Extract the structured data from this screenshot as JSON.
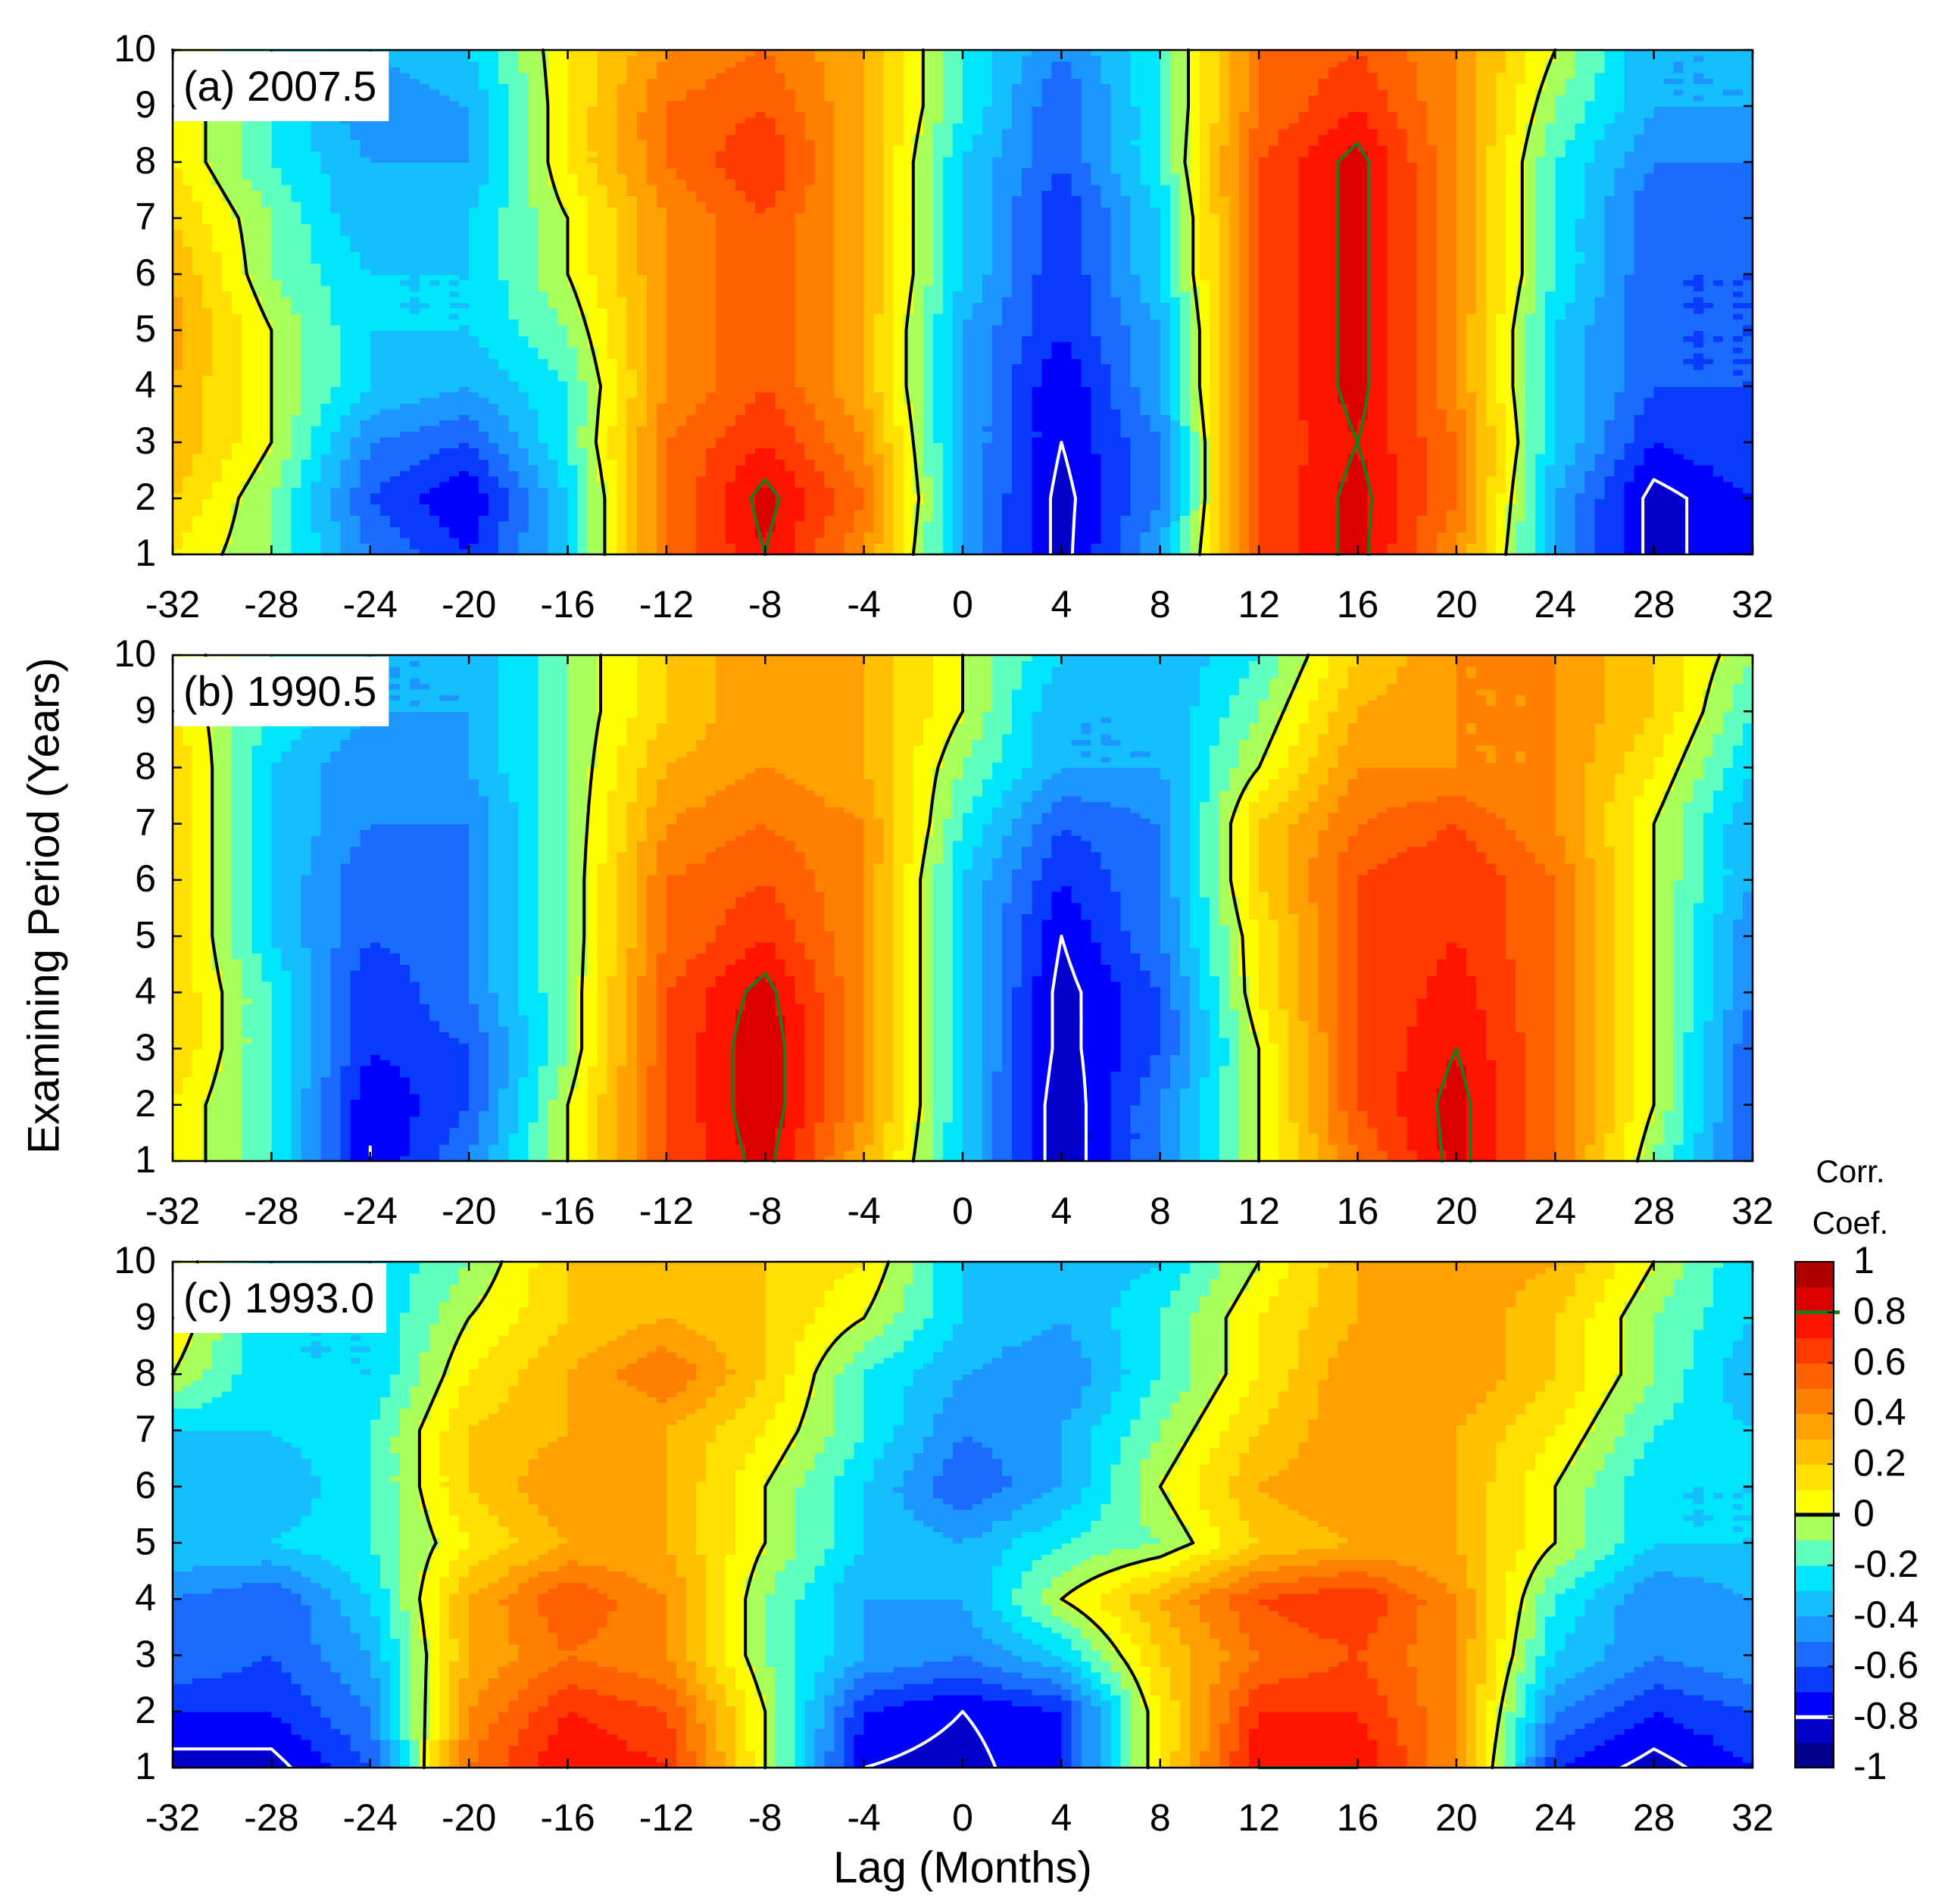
{
  "chart_data": [
    {
      "type": "contour",
      "title": "(a) 2007.5",
      "x": [
        -32,
        -28,
        -24,
        -20,
        -16,
        -12,
        -8,
        -4,
        0,
        4,
        8,
        12,
        16,
        20,
        24,
        28,
        32
      ],
      "y": [
        1,
        2,
        3,
        4,
        5,
        6,
        7,
        8,
        9,
        10
      ],
      "z": [
        [
          0.1,
          -0.1,
          -0.5,
          -0.7,
          -0.3,
          0.5,
          0.8,
          0.4,
          -0.4,
          -0.85,
          -0.4,
          0.6,
          0.85,
          0.4,
          -0.4,
          -0.85,
          -0.7
        ],
        [
          0.2,
          -0.1,
          -0.6,
          -0.8,
          -0.3,
          0.5,
          0.85,
          0.5,
          -0.4,
          -0.85,
          -0.5,
          0.6,
          0.85,
          0.5,
          -0.4,
          -0.85,
          -0.7
        ],
        [
          0.3,
          0.0,
          -0.5,
          -0.6,
          -0.2,
          0.5,
          0.7,
          0.4,
          -0.4,
          -0.8,
          -0.5,
          0.6,
          0.8,
          0.5,
          -0.3,
          -0.7,
          -0.6
        ],
        [
          0.3,
          0.0,
          -0.3,
          -0.4,
          -0.2,
          0.4,
          0.6,
          0.3,
          -0.4,
          -0.8,
          -0.4,
          0.6,
          0.85,
          0.4,
          -0.3,
          -0.6,
          -0.6
        ],
        [
          0.35,
          0.0,
          -0.3,
          -0.3,
          -0.1,
          0.4,
          0.6,
          0.3,
          -0.4,
          -0.7,
          -0.4,
          0.6,
          0.85,
          0.4,
          -0.3,
          -0.6,
          -0.6
        ],
        [
          0.3,
          -0.1,
          -0.3,
          -0.3,
          0.0,
          0.4,
          0.6,
          0.3,
          -0.3,
          -0.7,
          -0.3,
          0.6,
          0.85,
          0.4,
          -0.2,
          -0.6,
          -0.6
        ],
        [
          0.2,
          -0.1,
          -0.4,
          -0.3,
          0.0,
          0.4,
          0.6,
          0.3,
          -0.3,
          -0.7,
          -0.3,
          0.6,
          0.85,
          0.4,
          -0.2,
          -0.6,
          -0.5
        ],
        [
          0.1,
          -0.2,
          -0.4,
          -0.4,
          0.1,
          0.5,
          0.7,
          0.3,
          -0.3,
          -0.6,
          -0.2,
          0.6,
          0.85,
          0.4,
          -0.2,
          -0.5,
          -0.5
        ],
        [
          0.1,
          -0.2,
          -0.5,
          -0.4,
          0.1,
          0.5,
          0.6,
          0.3,
          -0.2,
          -0.6,
          -0.2,
          0.5,
          0.7,
          0.4,
          -0.1,
          -0.4,
          -0.4
        ],
        [
          0.0,
          -0.2,
          -0.4,
          -0.3,
          0.1,
          0.4,
          0.5,
          0.3,
          -0.2,
          -0.5,
          -0.2,
          0.5,
          0.6,
          0.4,
          0.0,
          -0.4,
          -0.4
        ]
      ],
      "xlim": [
        -32,
        32
      ],
      "ylim": [
        1,
        10
      ],
      "xticks": [
        -32,
        -28,
        -24,
        -20,
        -16,
        -12,
        -8,
        -4,
        0,
        4,
        8,
        12,
        16,
        20,
        24,
        28,
        32
      ],
      "yticks": [
        1,
        2,
        3,
        4,
        5,
        6,
        7,
        8,
        9,
        10
      ]
    },
    {
      "type": "contour",
      "title": "(b) 1990.5",
      "ylabel": "Examining Period (Years)",
      "x": [
        -32,
        -28,
        -24,
        -20,
        -16,
        -12,
        -8,
        -4,
        0,
        4,
        8,
        12,
        16,
        20,
        24,
        28,
        32
      ],
      "y": [
        1,
        2,
        3,
        4,
        5,
        6,
        7,
        8,
        9,
        10
      ],
      "z": [
        [
          0.1,
          -0.2,
          -0.8,
          -0.5,
          0.0,
          0.6,
          0.85,
          0.3,
          -0.3,
          -0.9,
          -0.5,
          0.0,
          0.5,
          0.85,
          0.5,
          -0.1,
          -0.6
        ],
        [
          0.1,
          -0.2,
          -0.8,
          -0.6,
          0.0,
          0.6,
          0.9,
          0.4,
          -0.3,
          -0.9,
          -0.5,
          0.0,
          0.6,
          0.85,
          0.5,
          0.0,
          -0.6
        ],
        [
          0.2,
          -0.2,
          -0.7,
          -0.6,
          -0.1,
          0.6,
          0.9,
          0.4,
          -0.3,
          -0.85,
          -0.6,
          0.0,
          0.6,
          0.8,
          0.5,
          0.0,
          -0.6
        ],
        [
          0.2,
          -0.2,
          -0.7,
          -0.5,
          -0.1,
          0.6,
          0.85,
          0.4,
          -0.3,
          -0.85,
          -0.6,
          0.1,
          0.6,
          0.75,
          0.5,
          0.0,
          -0.5
        ],
        [
          0.2,
          -0.3,
          -0.6,
          -0.5,
          -0.1,
          0.5,
          0.7,
          0.4,
          -0.3,
          -0.8,
          -0.5,
          0.1,
          0.6,
          0.7,
          0.5,
          0.0,
          -0.5
        ],
        [
          0.2,
          -0.3,
          -0.6,
          -0.5,
          -0.1,
          0.5,
          0.6,
          0.4,
          -0.3,
          -0.7,
          -0.5,
          0.2,
          0.6,
          0.7,
          0.5,
          0.0,
          -0.4
        ],
        [
          0.2,
          -0.3,
          -0.5,
          -0.5,
          -0.1,
          0.4,
          0.5,
          0.4,
          -0.2,
          -0.6,
          -0.5,
          0.2,
          0.5,
          0.6,
          0.4,
          0.0,
          -0.4
        ],
        [
          0.2,
          -0.3,
          -0.5,
          -0.4,
          -0.1,
          0.3,
          0.4,
          0.3,
          -0.1,
          -0.4,
          -0.4,
          0.0,
          0.4,
          0.4,
          0.4,
          0.1,
          -0.3
        ],
        [
          0.1,
          -0.2,
          -0.4,
          -0.4,
          -0.1,
          0.2,
          0.4,
          0.3,
          0.0,
          -0.4,
          -0.4,
          -0.1,
          0.3,
          0.4,
          0.4,
          0.2,
          -0.2
        ],
        [
          0.1,
          -0.2,
          -0.4,
          -0.4,
          -0.1,
          0.2,
          0.4,
          0.3,
          0.0,
          -0.3,
          -0.4,
          -0.2,
          0.2,
          0.4,
          0.4,
          0.2,
          -0.1
        ]
      ],
      "xlim": [
        -32,
        32
      ],
      "ylim": [
        1,
        10
      ],
      "xticks": [
        -32,
        -28,
        -24,
        -20,
        -16,
        -12,
        -8,
        -4,
        0,
        4,
        8,
        12,
        16,
        20,
        24,
        28,
        32
      ],
      "yticks": [
        1,
        2,
        3,
        4,
        5,
        6,
        7,
        8,
        9,
        10
      ]
    },
    {
      "type": "contour",
      "title": "(c) 1993.0",
      "xlabel": "Lag (Months)",
      "x": [
        -32,
        -28,
        -24,
        -20,
        -16,
        -12,
        -8,
        -4,
        0,
        4,
        8,
        12,
        16,
        20,
        24,
        28,
        32
      ],
      "y": [
        1,
        2,
        3,
        4,
        5,
        6,
        7,
        8,
        9,
        10
      ],
      "z": [
        [
          -0.85,
          -0.85,
          -0.6,
          0.5,
          0.8,
          0.7,
          0.0,
          -0.8,
          -0.85,
          -0.7,
          0.1,
          0.8,
          0.8,
          0.4,
          -0.7,
          -0.85,
          -0.7
        ],
        [
          -0.7,
          -0.7,
          -0.5,
          0.4,
          0.7,
          0.6,
          0.0,
          -0.7,
          -0.8,
          -0.7,
          0.1,
          0.7,
          0.7,
          0.4,
          -0.5,
          -0.7,
          -0.6
        ],
        [
          -0.5,
          -0.6,
          -0.4,
          0.3,
          0.5,
          0.4,
          -0.1,
          -0.4,
          -0.5,
          -0.3,
          0.2,
          0.5,
          0.6,
          0.4,
          -0.3,
          -0.5,
          -0.4
        ],
        [
          -0.5,
          -0.6,
          -0.3,
          0.3,
          0.6,
          0.4,
          -0.1,
          -0.4,
          -0.4,
          0.0,
          0.3,
          0.6,
          0.7,
          0.4,
          -0.2,
          -0.5,
          -0.4
        ],
        [
          -0.3,
          -0.3,
          -0.2,
          0.1,
          0.3,
          0.3,
          0.0,
          -0.3,
          -0.4,
          -0.2,
          -0.1,
          0.2,
          0.3,
          0.3,
          0.0,
          -0.3,
          -0.3
        ],
        [
          -0.4,
          -0.4,
          -0.2,
          0.2,
          0.4,
          0.3,
          0.0,
          -0.3,
          -0.6,
          -0.4,
          0.0,
          0.3,
          0.4,
          0.3,
          0.0,
          -0.3,
          -0.3
        ],
        [
          -0.3,
          -0.3,
          -0.2,
          0.2,
          0.3,
          0.3,
          0.1,
          -0.2,
          -0.5,
          -0.4,
          -0.1,
          0.2,
          0.4,
          0.3,
          0.1,
          -0.2,
          -0.3
        ],
        [
          0.0,
          -0.3,
          -0.3,
          0.1,
          0.3,
          0.5,
          0.2,
          -0.2,
          -0.4,
          -0.5,
          -0.2,
          0.1,
          0.4,
          0.4,
          0.2,
          -0.1,
          -0.4
        ],
        [
          0.1,
          -0.3,
          -0.3,
          0.0,
          0.2,
          0.3,
          0.2,
          0.0,
          -0.3,
          -0.4,
          -0.2,
          0.1,
          0.3,
          0.4,
          0.2,
          -0.1,
          -0.3
        ],
        [
          0.1,
          -0.3,
          -0.3,
          -0.1,
          0.2,
          0.3,
          0.2,
          0.1,
          -0.3,
          -0.4,
          -0.3,
          0.0,
          0.3,
          0.4,
          0.3,
          0.0,
          -0.3
        ]
      ],
      "xlim": [
        -32,
        32
      ],
      "ylim": [
        1,
        10
      ],
      "xticks": [
        -32,
        -28,
        -24,
        -20,
        -16,
        -12,
        -8,
        -4,
        0,
        4,
        8,
        12,
        16,
        20,
        24,
        28,
        32
      ],
      "yticks": [
        1,
        2,
        3,
        4,
        5,
        6,
        7,
        8,
        9,
        10
      ]
    }
  ],
  "colorbar": {
    "title": [
      "Corr.",
      "Coef."
    ],
    "levels": [
      -1,
      -0.9,
      -0.8,
      -0.7,
      -0.6,
      -0.5,
      -0.4,
      -0.3,
      -0.2,
      -0.1,
      0,
      0.1,
      0.2,
      0.3,
      0.4,
      0.5,
      0.6,
      0.7,
      0.8,
      0.9,
      1
    ],
    "colors": [
      "#00008b",
      "#0000c8",
      "#0000ff",
      "#0a3cff",
      "#1a6cff",
      "#1e96ff",
      "#14beff",
      "#00e6ff",
      "#5fffc0",
      "#a8ff5a",
      "#ffff00",
      "#ffe000",
      "#ffc000",
      "#ffa000",
      "#ff8000",
      "#ff6000",
      "#ff3c00",
      "#ff1400",
      "#dc0000",
      "#b00000"
    ],
    "ticks": [
      -1,
      -0.8,
      -0.6,
      -0.4,
      -0.2,
      0,
      0.2,
      0.4,
      0.6,
      0.8,
      1
    ],
    "lines": [
      {
        "value": 0,
        "color": "#000000"
      },
      {
        "value": 0.8,
        "color": "#1f7a1f"
      },
      {
        "value": -0.8,
        "color": "#ffffff"
      }
    ]
  }
}
